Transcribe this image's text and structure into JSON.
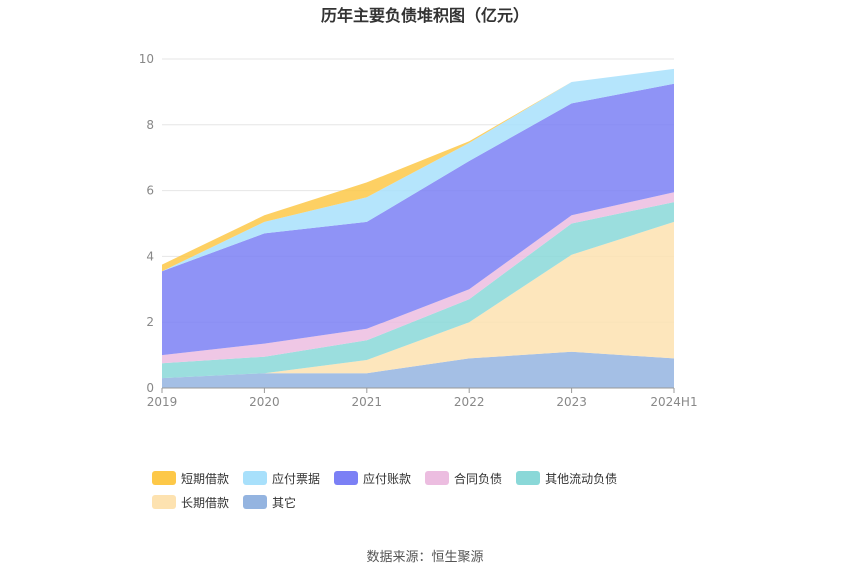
{
  "chart_data": {
    "type": "area",
    "stacked": true,
    "title": "历年主要负债堆积图（亿元）",
    "x": [
      "2019",
      "2020",
      "2021",
      "2022",
      "2023",
      "2024H1"
    ],
    "ylim": [
      0,
      10
    ],
    "yticks": [
      "0",
      "2",
      "4",
      "6",
      "8",
      "10"
    ],
    "grid": true,
    "legend_position": "bottom",
    "series": [
      {
        "name": "其它",
        "color": "#94b4e0",
        "values": [
          0.3,
          0.45,
          0.45,
          0.9,
          1.1,
          0.9
        ]
      },
      {
        "name": "长期借款",
        "color": "#fde2b0",
        "values": [
          0.0,
          0.0,
          0.4,
          1.1,
          2.95,
          4.15
        ]
      },
      {
        "name": "其他流动负债",
        "color": "#8ad8d8",
        "values": [
          0.45,
          0.5,
          0.6,
          0.7,
          0.95,
          0.6
        ]
      },
      {
        "name": "合同负债",
        "color": "#ecbde0",
        "values": [
          0.25,
          0.4,
          0.35,
          0.3,
          0.25,
          0.3
        ]
      },
      {
        "name": "应付账款",
        "color": "#7b80f5",
        "values": [
          2.55,
          3.35,
          3.25,
          3.9,
          3.4,
          3.3
        ]
      },
      {
        "name": "应付票据",
        "color": "#a8e0fb",
        "values": [
          0.0,
          0.35,
          0.75,
          0.55,
          0.65,
          0.45
        ]
      },
      {
        "name": "短期借款",
        "color": "#fdc848",
        "values": [
          0.2,
          0.2,
          0.45,
          0.05,
          0.0,
          0.0
        ]
      }
    ],
    "legend_order": [
      "短期借款",
      "应付票据",
      "应付账款",
      "合同负债",
      "其他流动负债",
      "长期借款",
      "其它"
    ]
  },
  "source": "数据来源：恒生聚源"
}
